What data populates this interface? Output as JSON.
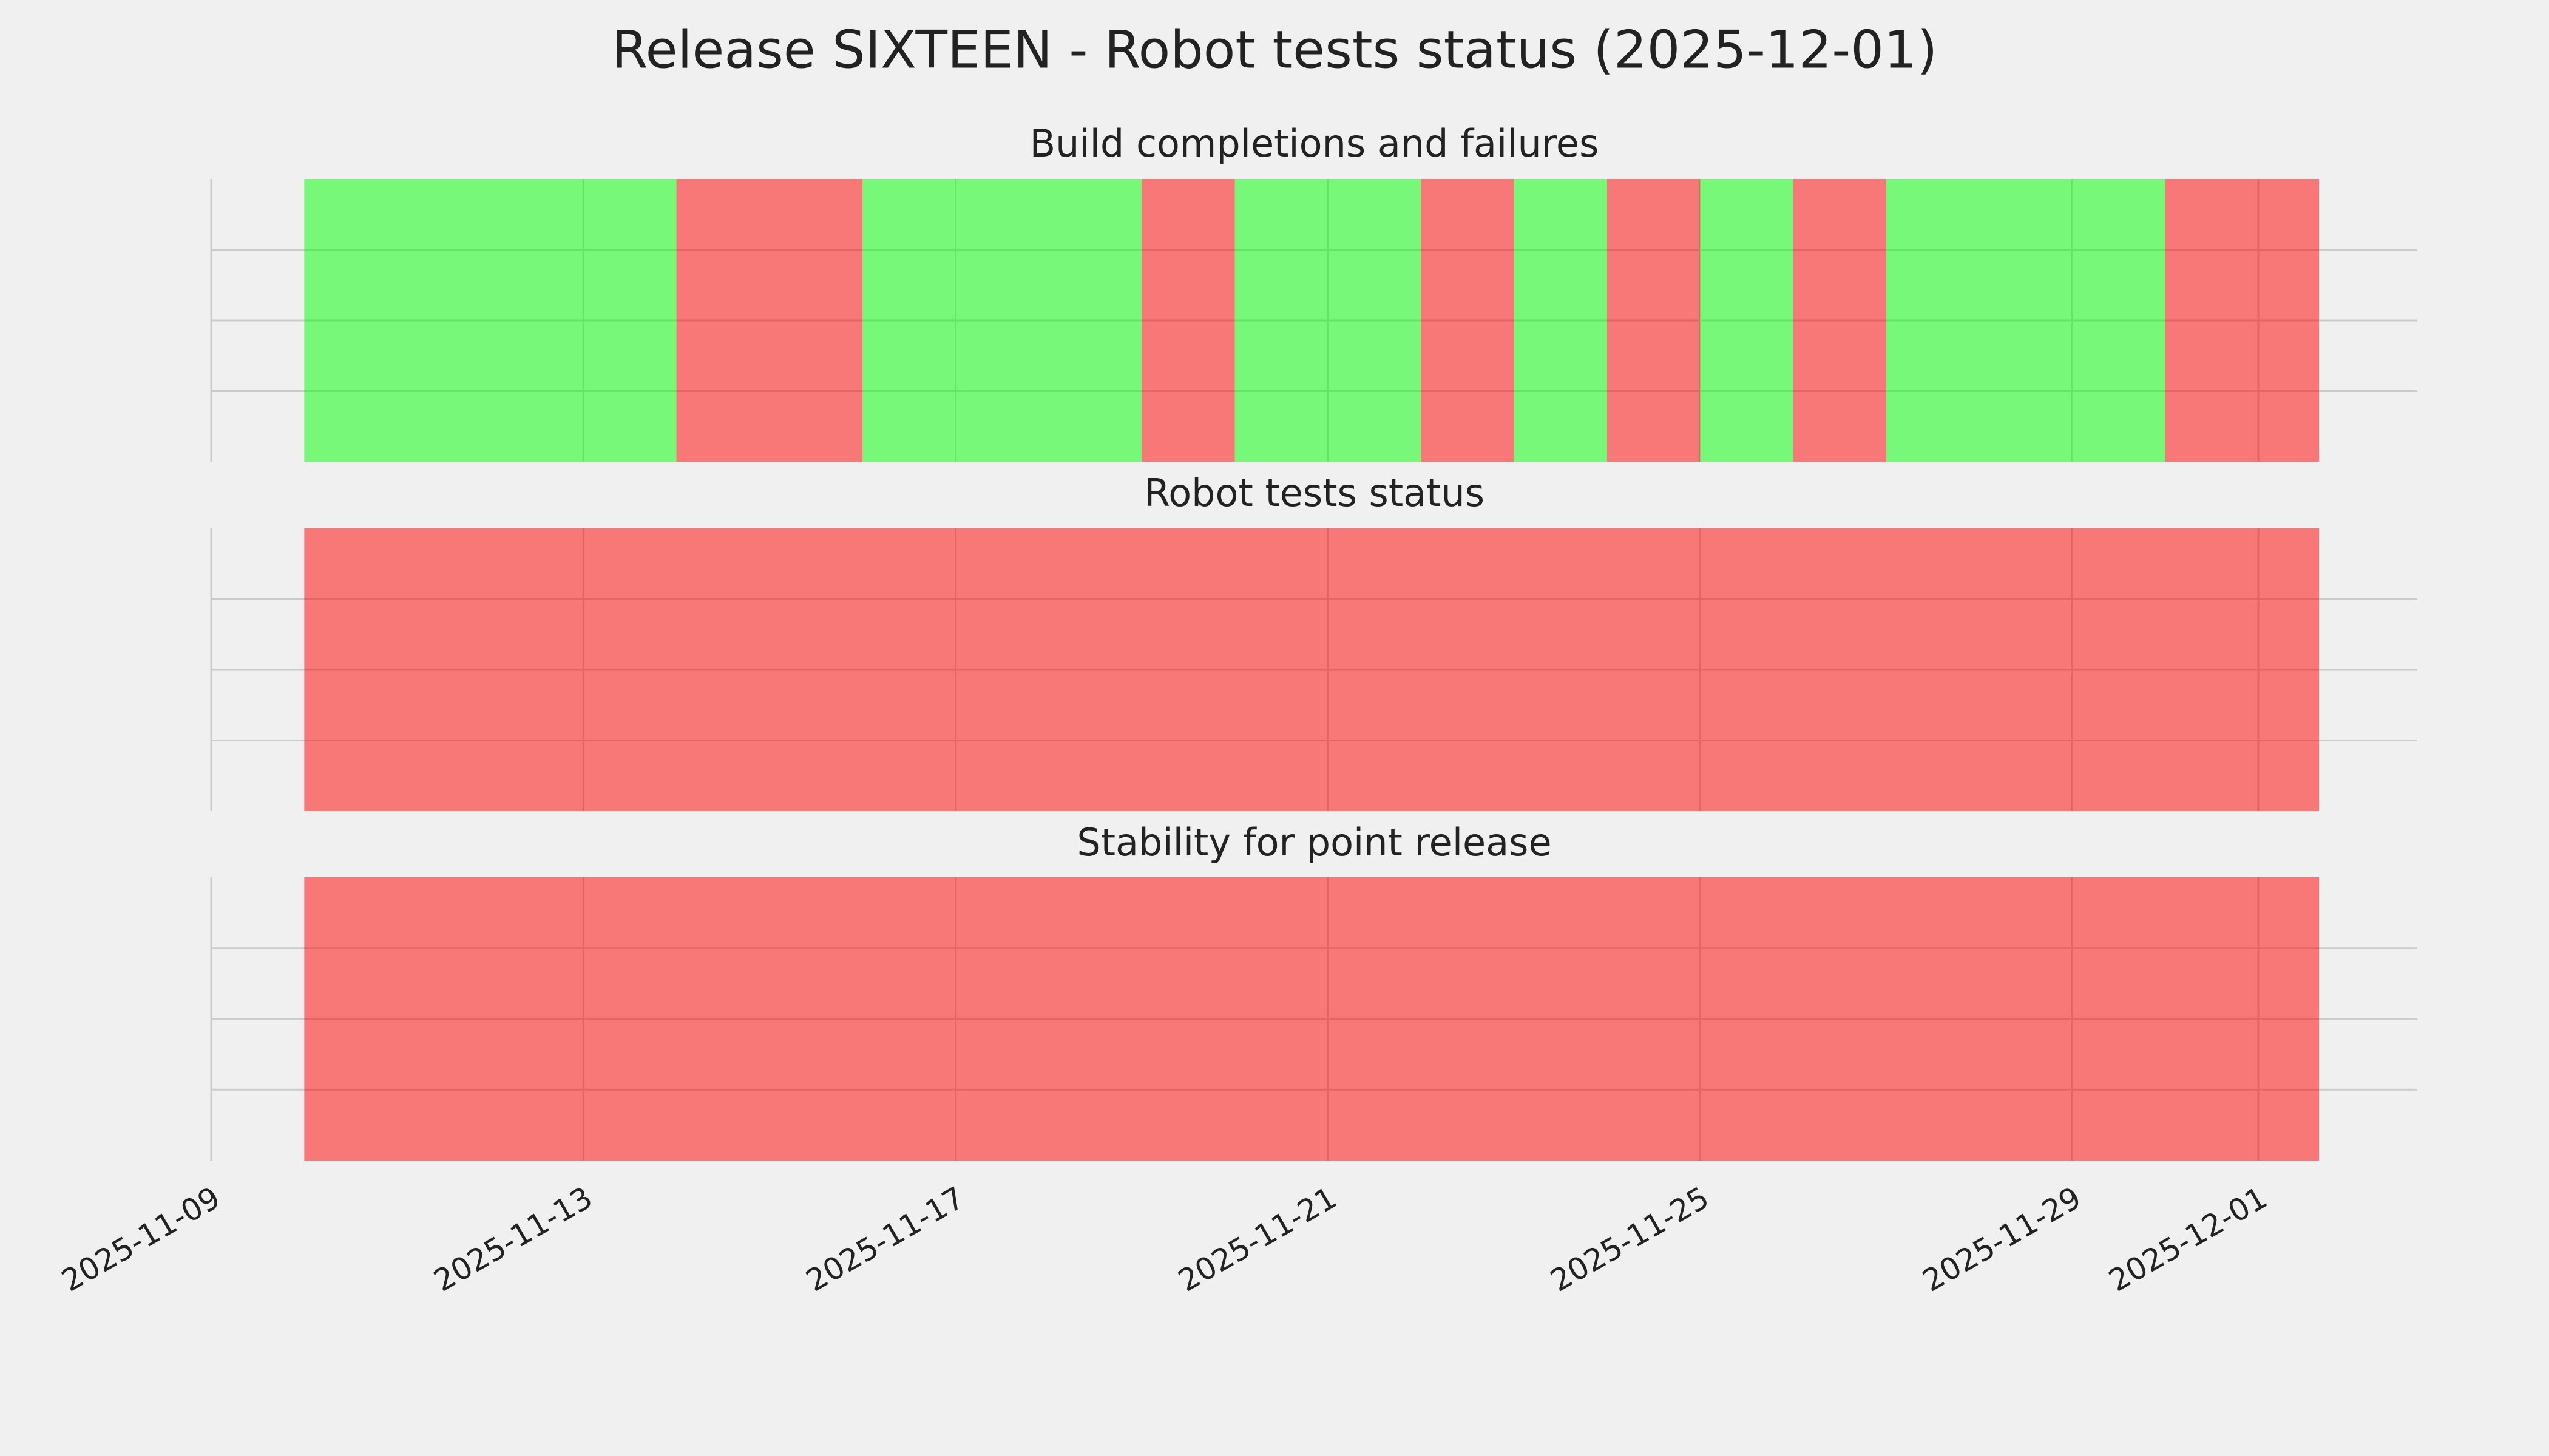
{
  "title": "Release SIXTEEN - Robot tests status (2025-12-01)",
  "chart_data": [
    {
      "type": "timeline",
      "title": "Build completions and failures",
      "alpha": 0.5,
      "grid": true,
      "xlim": [
        "2025-11-09",
        "2025-12-02T17:00"
      ],
      "xticks": [
        "2025-11-09",
        "2025-11-13",
        "2025-11-17",
        "2025-11-21",
        "2025-11-25",
        "2025-11-29",
        "2025-12-01"
      ],
      "segments": [
        {
          "start": "2025-11-10",
          "end": "2025-11-14",
          "color": "#00ff00"
        },
        {
          "start": "2025-11-14",
          "end": "2025-11-16",
          "color": "#ff0000"
        },
        {
          "start": "2025-11-16",
          "end": "2025-11-19",
          "color": "#00ff00"
        },
        {
          "start": "2025-11-19",
          "end": "2025-11-20",
          "color": "#ff0000"
        },
        {
          "start": "2025-11-20",
          "end": "2025-11-22",
          "color": "#00ff00"
        },
        {
          "start": "2025-11-22",
          "end": "2025-11-23",
          "color": "#ff0000"
        },
        {
          "start": "2025-11-23",
          "end": "2025-11-24",
          "color": "#00ff00"
        },
        {
          "start": "2025-11-24",
          "end": "2025-11-25",
          "color": "#ff0000"
        },
        {
          "start": "2025-11-25",
          "end": "2025-11-26",
          "color": "#00ff00"
        },
        {
          "start": "2025-11-26",
          "end": "2025-11-27",
          "color": "#ff0000"
        },
        {
          "start": "2025-11-27",
          "end": "2025-11-30",
          "color": "#00ff00"
        },
        {
          "start": "2025-11-30",
          "end": "2025-12-01T15:40",
          "color": "#ff0000"
        }
      ]
    },
    {
      "type": "timeline",
      "title": "Robot tests status",
      "alpha": 0.5,
      "grid": true,
      "xlim": [
        "2025-11-09",
        "2025-12-02T17:00"
      ],
      "xticks": [
        "2025-11-09",
        "2025-11-13",
        "2025-11-17",
        "2025-11-21",
        "2025-11-25",
        "2025-11-29",
        "2025-12-01"
      ],
      "segments": [
        {
          "start": "2025-11-10",
          "end": "2025-12-01T15:40",
          "color": "#ff0000"
        }
      ]
    },
    {
      "type": "timeline",
      "title": "Stability for point release",
      "alpha": 0.5,
      "grid": true,
      "show_xtick_labels": true,
      "xlim": [
        "2025-11-09",
        "2025-12-02T17:00"
      ],
      "xticks": [
        "2025-11-09",
        "2025-11-13",
        "2025-11-17",
        "2025-11-21",
        "2025-11-25",
        "2025-11-29",
        "2025-12-01"
      ],
      "segments": [
        {
          "start": "2025-11-10",
          "end": "2025-12-01T15:40",
          "color": "#ff0000"
        }
      ]
    }
  ]
}
